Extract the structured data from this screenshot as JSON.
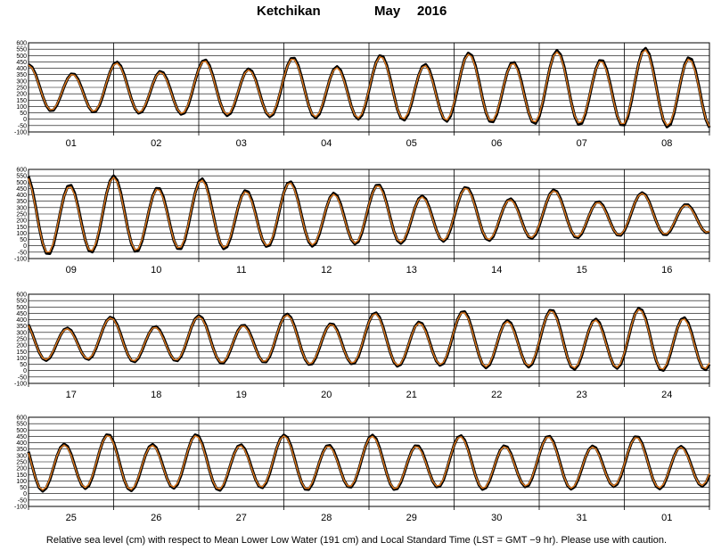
{
  "title": {
    "station": "Ketchikan",
    "month": "May",
    "year": "2016"
  },
  "caption": "Relative sea level (cm) with respect to Mean Lower Low Water (191 cm) and Local Standard Time (LST = GMT −9 hr). Please use with caution.",
  "colors": {
    "observed": "#000000",
    "predicted": "#e07a1f",
    "grid": "#000000",
    "background": "#ffffff"
  },
  "chart_data": [
    {
      "type": "line",
      "panel": 1,
      "x_unit": "day of month",
      "x_start": 1,
      "x_end": 9,
      "xticks": [
        "01",
        "02",
        "03",
        "04",
        "05",
        "06",
        "07",
        "08"
      ],
      "ylim": [
        -100,
        600
      ],
      "yticks": [
        -100,
        -50,
        0,
        50,
        100,
        150,
        200,
        250,
        300,
        350,
        400,
        450,
        500,
        550,
        600
      ],
      "grid": true,
      "series": [],
      "tide_model": {
        "mean": 230,
        "amp_start": 160,
        "amp_end": 300,
        "diurnal": 40,
        "phase": 0.0
      }
    },
    {
      "type": "line",
      "panel": 2,
      "x_unit": "day of month",
      "x_start": 9,
      "x_end": 17,
      "xticks": [
        "09",
        "10",
        "11",
        "12",
        "13",
        "14",
        "15",
        "16"
      ],
      "ylim": [
        -100,
        600
      ],
      "yticks": [
        -100,
        -50,
        0,
        50,
        100,
        150,
        200,
        250,
        300,
        350,
        400,
        450,
        500,
        550,
        600
      ],
      "grid": true,
      "series": [],
      "tide_model": {
        "mean": 230,
        "amp_start": 300,
        "amp_end": 130,
        "diurnal": 40,
        "phase": 0.4
      }
    },
    {
      "type": "line",
      "panel": 3,
      "x_unit": "day of month",
      "x_start": 17,
      "x_end": 25,
      "xticks": [
        "17",
        "18",
        "19",
        "20",
        "21",
        "22",
        "23",
        "24"
      ],
      "ylim": [
        -100,
        600
      ],
      "yticks": [
        -100,
        -50,
        0,
        50,
        100,
        150,
        200,
        250,
        300,
        350,
        400,
        450,
        500,
        550,
        600
      ],
      "grid": true,
      "series": [],
      "tide_model": {
        "mean": 230,
        "amp_start": 140,
        "amp_end": 230,
        "diurnal": 40,
        "phase": 0.8
      }
    },
    {
      "type": "line",
      "panel": 4,
      "x_unit": "day of month",
      "x_start": 25,
      "x_end": 33,
      "xticks": [
        "25",
        "26",
        "27",
        "28",
        "29",
        "30",
        "31",
        "01"
      ],
      "ylim": [
        -100,
        600
      ],
      "yticks": [
        -100,
        -50,
        0,
        50,
        100,
        150,
        200,
        250,
        300,
        350,
        400,
        450,
        500,
        550,
        600
      ],
      "grid": true,
      "series": [],
      "tide_model": {
        "mean": 230,
        "amp_start": 200,
        "amp_end": 180,
        "diurnal": 40,
        "phase": 1.2
      }
    }
  ]
}
